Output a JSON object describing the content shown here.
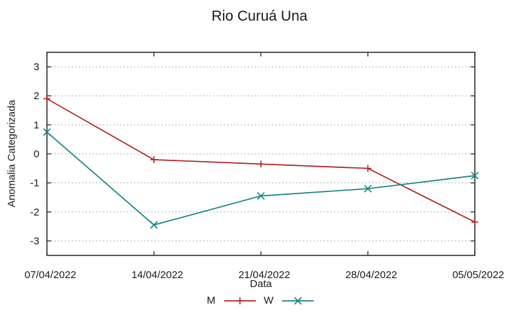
{
  "chart_data": {
    "type": "line",
    "title": "Rio Curuá Una",
    "xlabel": "Data",
    "ylabel": "Anomalia Categorizada",
    "categories": [
      "07/04/2022",
      "14/04/2022",
      "21/04/2022",
      "28/04/2022",
      "05/05/2022"
    ],
    "series": [
      {
        "name": "M",
        "marker": "plus",
        "color": "#b22222",
        "values": [
          1.9,
          -0.2,
          -0.35,
          -0.5,
          -2.35
        ]
      },
      {
        "name": "W",
        "marker": "cross",
        "color": "#148484",
        "values": [
          0.75,
          -2.45,
          -1.45,
          -1.2,
          -0.75
        ]
      }
    ],
    "ylim": [
      -3.5,
      3.5
    ],
    "yticks": [
      -3,
      -2,
      -1,
      0,
      1,
      2,
      3
    ],
    "grid": "horizontal-dotted",
    "legend_position": "bottom-center",
    "colors": {
      "grid": "#b0b0b0",
      "border": "#3c3c3c",
      "text": "#1a1a1a"
    }
  }
}
